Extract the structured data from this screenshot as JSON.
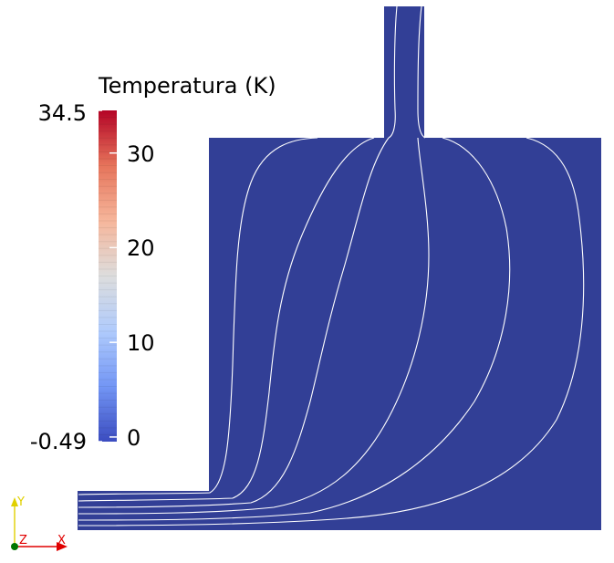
{
  "legend": {
    "title": "Temperatura (K)",
    "max_label": "34.5",
    "min_label": "-0.49",
    "ticks": [
      {
        "value": 30,
        "label": "30"
      },
      {
        "value": 20,
        "label": "20"
      },
      {
        "value": 10,
        "label": "10"
      },
      {
        "value": 0,
        "label": "0"
      }
    ],
    "range": [
      -0.49,
      34.5
    ],
    "colormap": [
      "#3b4cc0",
      "#7396f5",
      "#b0cbfc",
      "#dddddd",
      "#f6b69b",
      "#e6745b",
      "#b40426"
    ]
  },
  "axes": {
    "y_label": "Y",
    "z_label": "Z",
    "x_label": "X",
    "colors": {
      "x": "#e00000",
      "y": "#e0d000",
      "z": "#007700"
    }
  },
  "domain": {
    "fill_color": "#323f96",
    "contour_color": "#ffffff"
  }
}
